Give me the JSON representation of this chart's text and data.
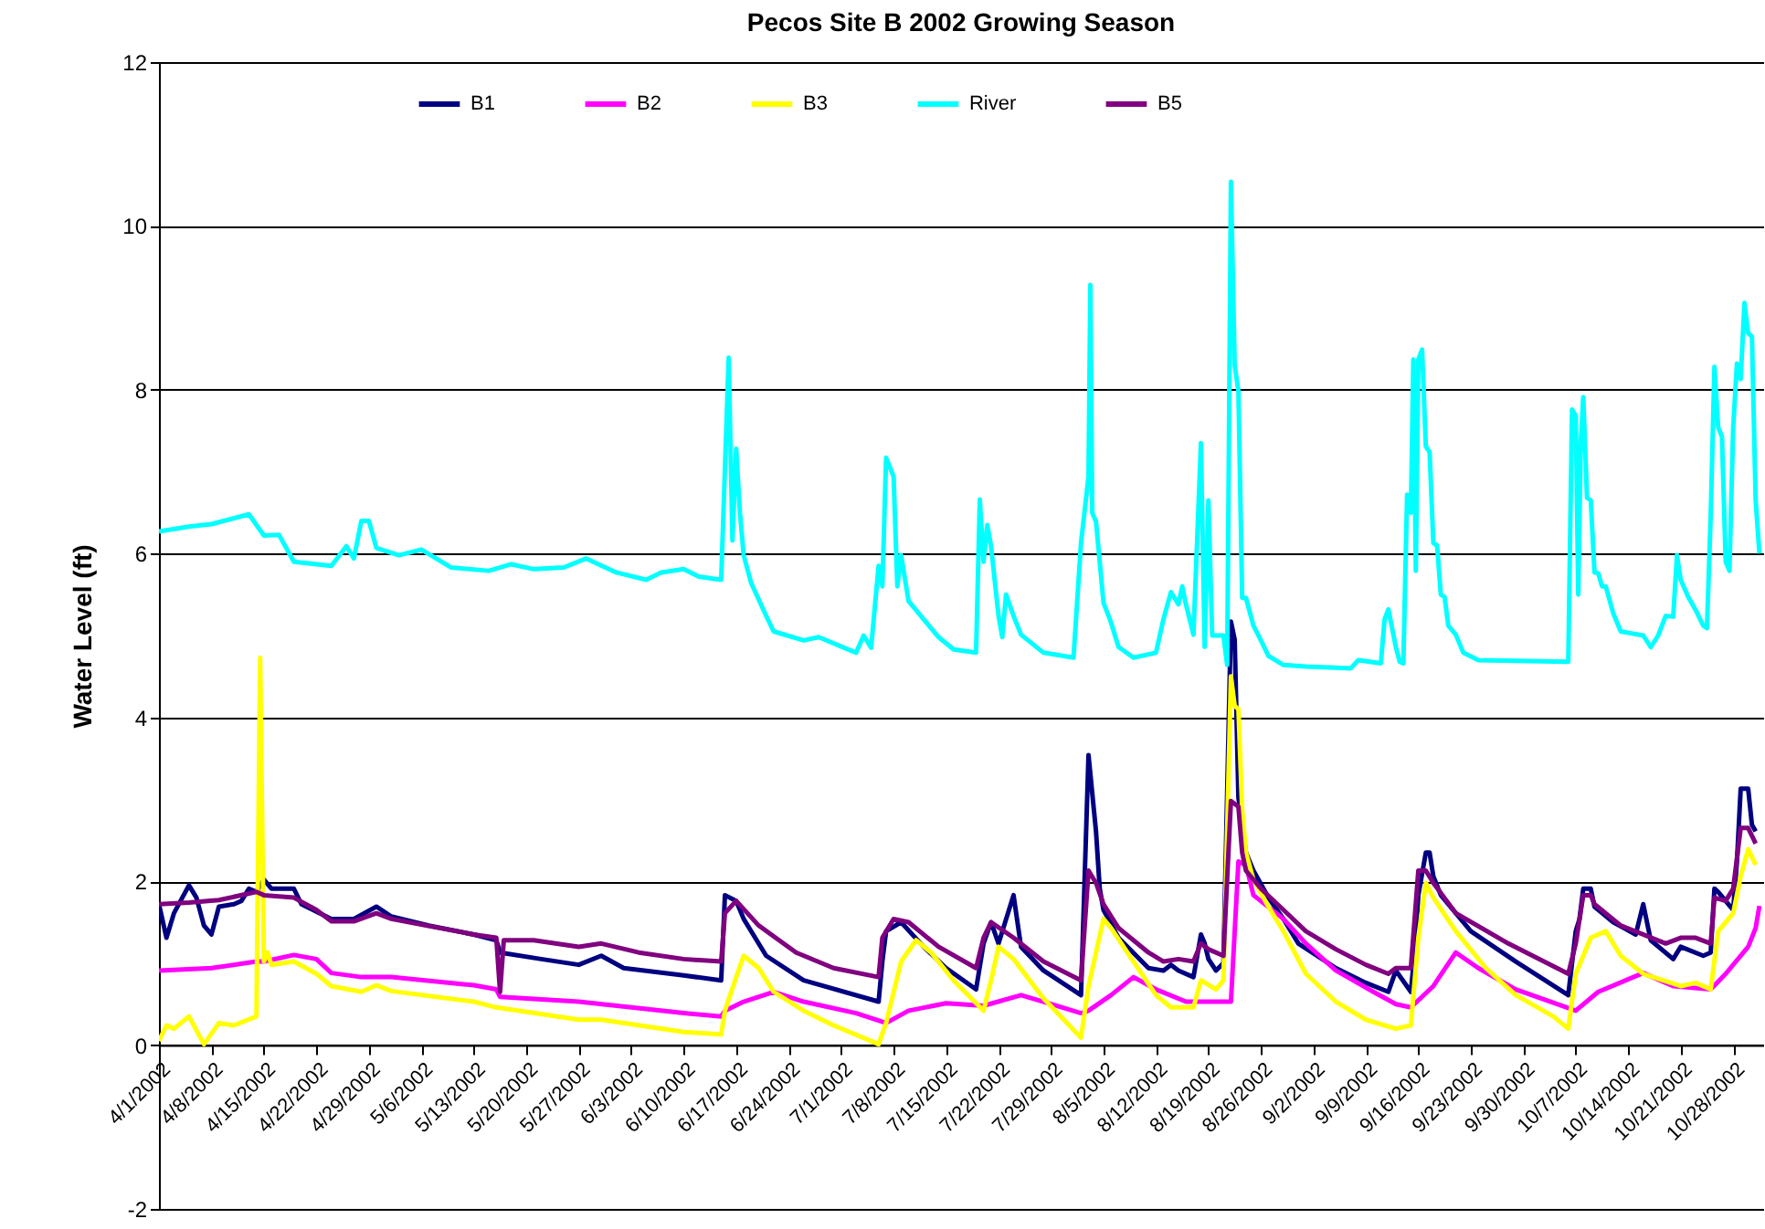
{
  "chart_data": {
    "type": "line",
    "title": "Pecos Site B 2002 Growing Season",
    "ylabel": "Water Level (ft)",
    "xlim": [
      "2002-04-01",
      "2002-11-01"
    ],
    "xticks": [
      {
        "value": "2002-04-01",
        "label": "4/1/2002"
      },
      {
        "value": "2002-04-08",
        "label": "4/8/2002"
      },
      {
        "value": "2002-04-15",
        "label": "4/15/2002"
      },
      {
        "value": "2002-04-22",
        "label": "4/22/2002"
      },
      {
        "value": "2002-04-29",
        "label": "4/29/2002"
      },
      {
        "value": "2002-05-06",
        "label": "5/6/2002"
      },
      {
        "value": "2002-05-13",
        "label": "5/13/2002"
      },
      {
        "value": "2002-05-20",
        "label": "5/20/2002"
      },
      {
        "value": "2002-05-27",
        "label": "5/27/2002"
      },
      {
        "value": "2002-06-03",
        "label": "6/3/2002"
      },
      {
        "value": "2002-06-10",
        "label": "6/10/2002"
      },
      {
        "value": "2002-06-17",
        "label": "6/17/2002"
      },
      {
        "value": "2002-06-24",
        "label": "6/24/2002"
      },
      {
        "value": "2002-07-01",
        "label": "7/1/2002"
      },
      {
        "value": "2002-07-08",
        "label": "7/8/2002"
      },
      {
        "value": "2002-07-15",
        "label": "7/15/2002"
      },
      {
        "value": "2002-07-22",
        "label": "7/22/2002"
      },
      {
        "value": "2002-07-29",
        "label": "7/29/2002"
      },
      {
        "value": "2002-08-05",
        "label": "8/5/2002"
      },
      {
        "value": "2002-08-12",
        "label": "8/12/2002"
      },
      {
        "value": "2002-08-19",
        "label": "8/19/2002"
      },
      {
        "value": "2002-08-26",
        "label": "8/26/2002"
      },
      {
        "value": "2002-09-02",
        "label": "9/2/2002"
      },
      {
        "value": "2002-09-09",
        "label": "9/9/2002"
      },
      {
        "value": "2002-09-16",
        "label": "9/16/2002"
      },
      {
        "value": "2002-09-23",
        "label": "9/23/2002"
      },
      {
        "value": "2002-09-30",
        "label": "9/30/2002"
      },
      {
        "value": "2002-10-07",
        "label": "10/7/2002"
      },
      {
        "value": "2002-10-14",
        "label": "10/14/2002"
      },
      {
        "value": "2002-10-21",
        "label": "10/21/2002"
      },
      {
        "value": "2002-10-28",
        "label": "10/28/2002"
      }
    ],
    "ylim": [
      -2,
      12
    ],
    "yticks": [
      -2,
      0,
      2,
      4,
      6,
      8,
      10,
      12
    ],
    "grid": "y",
    "legend": "top",
    "series": [
      {
        "name": "B1",
        "color": "#000080",
        "x": [
          "2002-04-01",
          "2002-04-02",
          "2002-04-03",
          "2002-04-05",
          "2002-04-06",
          "2002-04-07",
          "2002-04-08",
          "2002-04-09",
          "2002-04-11",
          "2002-04-12",
          "2002-04-13",
          "2002-04-14",
          "2002-04-15",
          "2002-04-16",
          "2002-04-19",
          "2002-04-20",
          "2002-04-24",
          "2002-04-27",
          "2002-04-30",
          "2002-05-02",
          "2002-05-07",
          "2002-05-13",
          "2002-05-16",
          "2002-05-16T12:00",
          "2002-05-22",
          "2002-05-27",
          "2002-05-30",
          "2002-06-02",
          "2002-06-10",
          "2002-06-15",
          "2002-06-15T12:00",
          "2002-06-17",
          "2002-06-18",
          "2002-06-21",
          "2002-06-26",
          "2002-07-06",
          "2002-07-06T12:00",
          "2002-07-07",
          "2002-07-09",
          "2002-07-12",
          "2002-07-15",
          "2002-07-19",
          "2002-07-20",
          "2002-07-21",
          "2002-07-22",
          "2002-07-24",
          "2002-07-25",
          "2002-07-28",
          "2002-08-02",
          "2002-08-03",
          "2002-08-04",
          "2002-08-04T12:00",
          "2002-08-05",
          "2002-08-07",
          "2002-08-11",
          "2002-08-13",
          "2002-08-14",
          "2002-08-15",
          "2002-08-17",
          "2002-08-18",
          "2002-08-18T12:00",
          "2002-08-19",
          "2002-08-20",
          "2002-08-21",
          "2002-08-22",
          "2002-08-22T12:00",
          "2002-08-23",
          "2002-08-24",
          "2002-08-25",
          "2002-08-27",
          "2002-08-29",
          "2002-08-31",
          "2002-09-05",
          "2002-09-09",
          "2002-09-12",
          "2002-09-13",
          "2002-09-15",
          "2002-09-15T12:00",
          "2002-09-16",
          "2002-09-17",
          "2002-09-17T12:00",
          "2002-09-18",
          "2002-09-19",
          "2002-09-23",
          "2002-09-29",
          "2002-10-06",
          "2002-10-07",
          "2002-10-07T12:00",
          "2002-10-08",
          "2002-10-09",
          "2002-10-09T12:00",
          "2002-10-12",
          "2002-10-15",
          "2002-10-16",
          "2002-10-17",
          "2002-10-20",
          "2002-10-21",
          "2002-10-24",
          "2002-10-25",
          "2002-10-25T12:00",
          "2002-10-26",
          "2002-10-28",
          "2002-10-28T12:00",
          "2002-10-29",
          "2002-10-30",
          "2002-10-30T12:00",
          "2002-10-31"
        ],
        "values": [
          1.72,
          1.31,
          1.61,
          1.95,
          1.8,
          1.46,
          1.35,
          1.69,
          1.72,
          1.76,
          1.91,
          1.87,
          2.02,
          1.91,
          1.91,
          1.72,
          1.54,
          1.54,
          1.69,
          1.57,
          1.46,
          1.35,
          1.28,
          1.13,
          1.05,
          0.98,
          1.09,
          0.94,
          0.85,
          0.79,
          1.83,
          1.76,
          1.54,
          1.09,
          0.79,
          0.53,
          1.02,
          1.39,
          1.5,
          1.2,
          0.94,
          0.68,
          1.24,
          1.5,
          1.24,
          1.83,
          1.2,
          0.91,
          0.61,
          3.54,
          2.61,
          1.91,
          1.65,
          1.31,
          0.94,
          0.91,
          0.98,
          0.91,
          0.83,
          1.35,
          1.24,
          1.05,
          0.91,
          1.0,
          5.17,
          4.95,
          3.02,
          2.35,
          2.13,
          1.8,
          1.54,
          1.24,
          0.94,
          0.76,
          0.65,
          0.91,
          0.65,
          1.13,
          1.83,
          2.35,
          2.35,
          2.06,
          1.83,
          1.39,
          1.02,
          0.61,
          1.39,
          1.54,
          1.91,
          1.91,
          1.69,
          1.5,
          1.35,
          1.72,
          1.28,
          1.05,
          1.2,
          1.09,
          1.13,
          1.91,
          1.87,
          1.65,
          2.24,
          3.13,
          3.13,
          2.69,
          2.61
        ]
      },
      {
        "name": "B2",
        "color": "#ff00ff",
        "x": [
          "2002-04-01",
          "2002-04-08",
          "2002-04-14",
          "2002-04-15",
          "2002-04-19",
          "2002-04-22",
          "2002-04-24",
          "2002-04-28",
          "2002-05-02",
          "2002-05-13",
          "2002-05-16",
          "2002-05-16T12:00",
          "2002-05-27",
          "2002-06-10",
          "2002-06-15",
          "2002-06-15T12:00",
          "2002-06-18",
          "2002-06-22",
          "2002-06-26",
          "2002-07-03",
          "2002-07-07",
          "2002-07-10",
          "2002-07-15",
          "2002-07-20",
          "2002-07-25",
          "2002-07-29",
          "2002-08-02",
          "2002-08-03",
          "2002-08-06",
          "2002-08-09",
          "2002-08-12",
          "2002-08-16",
          "2002-08-21",
          "2002-08-22",
          "2002-08-23",
          "2002-08-24",
          "2002-08-25",
          "2002-08-29",
          "2002-09-01",
          "2002-09-05",
          "2002-09-10",
          "2002-09-13",
          "2002-09-15",
          "2002-09-18",
          "2002-09-21",
          "2002-09-24",
          "2002-09-29",
          "2002-10-07",
          "2002-10-10",
          "2002-10-16",
          "2002-10-20",
          "2002-10-25",
          "2002-10-27",
          "2002-10-30",
          "2002-10-31",
          "2002-10-31T12:00"
        ],
        "values": [
          0.91,
          0.94,
          1.02,
          1.02,
          1.1,
          1.05,
          0.88,
          0.83,
          0.83,
          0.73,
          0.68,
          0.59,
          0.53,
          0.39,
          0.35,
          0.42,
          0.53,
          0.65,
          0.53,
          0.39,
          0.27,
          0.42,
          0.51,
          0.48,
          0.61,
          0.5,
          0.39,
          0.42,
          0.61,
          0.83,
          0.68,
          0.53,
          0.53,
          0.53,
          2.24,
          2.2,
          1.83,
          1.54,
          1.24,
          0.91,
          0.65,
          0.5,
          0.46,
          0.72,
          1.13,
          0.94,
          0.68,
          0.42,
          0.65,
          0.88,
          0.72,
          0.68,
          0.87,
          1.2,
          1.43,
          1.7
        ]
      },
      {
        "name": "B3",
        "color": "#ffff00",
        "x": [
          "2002-04-01",
          "2002-04-02",
          "2002-04-03",
          "2002-04-05",
          "2002-04-07",
          "2002-04-09",
          "2002-04-11",
          "2002-04-14",
          "2002-04-14T12:00",
          "2002-04-15",
          "2002-04-15T12:00",
          "2002-04-16",
          "2002-04-19",
          "2002-04-22",
          "2002-04-24",
          "2002-04-28",
          "2002-04-30",
          "2002-05-02",
          "2002-05-13",
          "2002-05-16",
          "2002-05-27",
          "2002-05-30",
          "2002-06-10",
          "2002-06-15",
          "2002-06-15T12:00",
          "2002-06-17",
          "2002-06-18",
          "2002-06-20",
          "2002-06-22",
          "2002-06-26",
          "2002-06-30",
          "2002-07-06",
          "2002-07-07",
          "2002-07-09",
          "2002-07-11",
          "2002-07-13",
          "2002-07-16",
          "2002-07-20",
          "2002-07-21",
          "2002-07-22",
          "2002-07-24",
          "2002-07-28",
          "2002-08-02",
          "2002-08-03",
          "2002-08-05",
          "2002-08-06",
          "2002-08-09",
          "2002-08-12",
          "2002-08-14",
          "2002-08-17",
          "2002-08-18",
          "2002-08-20",
          "2002-08-21",
          "2002-08-22",
          "2002-08-22T12:00",
          "2002-08-23",
          "2002-08-23T12:00",
          "2002-08-24",
          "2002-08-25",
          "2002-08-27",
          "2002-08-29",
          "2002-09-01",
          "2002-09-05",
          "2002-09-09",
          "2002-09-13",
          "2002-09-15",
          "2002-09-16",
          "2002-09-17",
          "2002-09-18",
          "2002-09-21",
          "2002-09-25",
          "2002-09-29",
          "2002-10-04",
          "2002-10-06",
          "2002-10-07",
          "2002-10-09",
          "2002-10-11",
          "2002-10-13",
          "2002-10-16",
          "2002-10-21",
          "2002-10-23",
          "2002-10-25",
          "2002-10-26",
          "2002-10-28",
          "2002-10-29",
          "2002-10-30",
          "2002-10-31"
        ],
        "values": [
          0.05,
          0.24,
          0.2,
          0.35,
          0.01,
          0.27,
          0.24,
          0.35,
          4.73,
          1.02,
          1.13,
          0.98,
          1.02,
          0.87,
          0.72,
          0.65,
          0.73,
          0.66,
          0.53,
          0.46,
          0.31,
          0.31,
          0.16,
          0.13,
          0.42,
          0.83,
          1.09,
          0.94,
          0.65,
          0.42,
          0.24,
          0.01,
          0.27,
          1.02,
          1.28,
          1.13,
          0.79,
          0.42,
          0.79,
          1.2,
          1.05,
          0.57,
          0.09,
          0.72,
          1.54,
          1.43,
          1.02,
          0.61,
          0.46,
          0.46,
          0.79,
          0.68,
          0.79,
          4.5,
          4.14,
          4.1,
          2.87,
          2.35,
          2.02,
          1.69,
          1.39,
          0.87,
          0.53,
          0.31,
          0.2,
          0.24,
          1.31,
          1.98,
          1.8,
          1.39,
          0.94,
          0.61,
          0.35,
          0.2,
          0.87,
          1.31,
          1.39,
          1.09,
          0.87,
          0.72,
          0.76,
          0.68,
          1.39,
          1.61,
          2.06,
          2.39,
          2.2
        ]
      },
      {
        "name": "River",
        "color": "#00ffff",
        "x": [
          "2002-04-01",
          "2002-04-05",
          "2002-04-08",
          "2002-04-13",
          "2002-04-15",
          "2002-04-17",
          "2002-04-19",
          "2002-04-24",
          "2002-04-26",
          "2002-04-27",
          "2002-04-28",
          "2002-04-29",
          "2002-04-30",
          "2002-05-03",
          "2002-05-06",
          "2002-05-10",
          "2002-05-15",
          "2002-05-18",
          "2002-05-21",
          "2002-05-25",
          "2002-05-28",
          "2002-06-01",
          "2002-06-05",
          "2002-06-07",
          "2002-06-10",
          "2002-06-12",
          "2002-06-15",
          "2002-06-16",
          "2002-06-16T12:00",
          "2002-06-17",
          "2002-06-17T12:00",
          "2002-06-18",
          "2002-06-19",
          "2002-06-21",
          "2002-06-22",
          "2002-06-26",
          "2002-06-28",
          "2002-07-03",
          "2002-07-04",
          "2002-07-05",
          "2002-07-06",
          "2002-07-06T12:00",
          "2002-07-07",
          "2002-07-08",
          "2002-07-08T12:00",
          "2002-07-09",
          "2002-07-10",
          "2002-07-12",
          "2002-07-14",
          "2002-07-16",
          "2002-07-19",
          "2002-07-19T12:00",
          "2002-07-20",
          "2002-07-20T12:00",
          "2002-07-21",
          "2002-07-22",
          "2002-07-22T12:00",
          "2002-07-23",
          "2002-07-24",
          "2002-07-25",
          "2002-07-28",
          "2002-08-01",
          "2002-08-02",
          "2002-08-03",
          "2002-08-03T06:00",
          "2002-08-03T12:00",
          "2002-08-04",
          "2002-08-05",
          "2002-08-06",
          "2002-08-07",
          "2002-08-09",
          "2002-08-12",
          "2002-08-13",
          "2002-08-14",
          "2002-08-15",
          "2002-08-15T12:00",
          "2002-08-16",
          "2002-08-17",
          "2002-08-18",
          "2002-08-18T12:00",
          "2002-08-19",
          "2002-08-19T12:00",
          "2002-08-21",
          "2002-08-21T12:00",
          "2002-08-22",
          "2002-08-22T12:00",
          "2002-08-23",
          "2002-08-23T12:00",
          "2002-08-24",
          "2002-08-25",
          "2002-08-26",
          "2002-08-27",
          "2002-08-29",
          "2002-09-01",
          "2002-09-07",
          "2002-09-08",
          "2002-09-11",
          "2002-09-11T12:00",
          "2002-09-12",
          "2002-09-13",
          "2002-09-13T12:00",
          "2002-09-14",
          "2002-09-14T12:00",
          "2002-09-15",
          "2002-09-15T08:00",
          "2002-09-15T16:00",
          "2002-09-16",
          "2002-09-16T12:00",
          "2002-09-17",
          "2002-09-17T12:00",
          "2002-09-18",
          "2002-09-18T12:00",
          "2002-09-19",
          "2002-09-19T12:00",
          "2002-09-20",
          "2002-09-21",
          "2002-09-22",
          "2002-09-24",
          "2002-10-06",
          "2002-10-06T12:00",
          "2002-10-07",
          "2002-10-07T08:00",
          "2002-10-07T16:00",
          "2002-10-08",
          "2002-10-08T12:00",
          "2002-10-09",
          "2002-10-09T12:00",
          "2002-10-10",
          "2002-10-10T12:00",
          "2002-10-11",
          "2002-10-12",
          "2002-10-13",
          "2002-10-16",
          "2002-10-17",
          "2002-10-18",
          "2002-10-19",
          "2002-10-20",
          "2002-10-20T12:00",
          "2002-10-21",
          "2002-10-22",
          "2002-10-23",
          "2002-10-24",
          "2002-10-24T12:00",
          "2002-10-25",
          "2002-10-25T12:00",
          "2002-10-26",
          "2002-10-26T12:00",
          "2002-10-27",
          "2002-10-27T12:00",
          "2002-10-28",
          "2002-10-28T12:00",
          "2002-10-29",
          "2002-10-29T12:00",
          "2002-10-30",
          "2002-10-30T12:00",
          "2002-10-31",
          "2002-10-31T12:00"
        ],
        "values": [
          6.27,
          6.33,
          6.36,
          6.48,
          6.22,
          6.23,
          5.9,
          5.85,
          6.09,
          5.94,
          6.4,
          6.4,
          6.07,
          5.98,
          6.05,
          5.83,
          5.79,
          5.87,
          5.81,
          5.83,
          5.94,
          5.77,
          5.68,
          5.77,
          5.81,
          5.72,
          5.68,
          8.39,
          6.16,
          7.28,
          6.5,
          5.98,
          5.64,
          5.24,
          5.05,
          4.94,
          4.98,
          4.79,
          5.0,
          4.85,
          5.85,
          5.6,
          7.17,
          6.94,
          5.6,
          5.98,
          5.42,
          5.2,
          4.98,
          4.83,
          4.79,
          6.66,
          5.9,
          6.35,
          6.09,
          5.24,
          4.98,
          5.5,
          5.24,
          5.01,
          4.79,
          4.73,
          6.13,
          6.94,
          9.28,
          6.5,
          6.39,
          5.4,
          5.16,
          4.86,
          4.73,
          4.79,
          5.2,
          5.53,
          5.38,
          5.6,
          5.38,
          5.01,
          7.35,
          4.86,
          6.65,
          5.0,
          5.0,
          4.64,
          10.54,
          8.3,
          7.98,
          5.46,
          5.46,
          5.12,
          4.94,
          4.75,
          4.64,
          4.62,
          4.6,
          4.7,
          4.66,
          5.2,
          5.32,
          4.86,
          4.68,
          4.66,
          6.72,
          6.5,
          8.37,
          5.79,
          8.37,
          8.49,
          7.31,
          7.24,
          6.13,
          6.1,
          5.5,
          5.47,
          5.12,
          5.01,
          4.79,
          4.7,
          4.68,
          7.76,
          7.68,
          5.5,
          7.35,
          7.91,
          6.68,
          6.65,
          5.77,
          5.76,
          5.6,
          5.6,
          5.27,
          5.05,
          5.0,
          4.86,
          5.0,
          5.24,
          5.23,
          5.98,
          5.68,
          5.47,
          5.31,
          5.12,
          5.09,
          6.46,
          8.28,
          7.54,
          7.43,
          5.9,
          5.79,
          7.54,
          8.32,
          8.13,
          9.06,
          8.69,
          8.65,
          6.65,
          6.0
        ]
      },
      {
        "name": "B5",
        "color": "#800080",
        "x": [
          "2002-04-01",
          "2002-04-05",
          "2002-04-09",
          "2002-04-14",
          "2002-04-15",
          "2002-04-19",
          "2002-04-22",
          "2002-04-24",
          "2002-04-27",
          "2002-04-30",
          "2002-05-02",
          "2002-05-13",
          "2002-05-16",
          "2002-05-16T12:00",
          "2002-05-17",
          "2002-05-21",
          "2002-05-27",
          "2002-05-30",
          "2002-06-04",
          "2002-06-10",
          "2002-06-15",
          "2002-06-15T12:00",
          "2002-06-17",
          "2002-06-20",
          "2002-06-25",
          "2002-06-30",
          "2002-07-06",
          "2002-07-06T12:00",
          "2002-07-08",
          "2002-07-10",
          "2002-07-14",
          "2002-07-19",
          "2002-07-20",
          "2002-07-21",
          "2002-07-24",
          "2002-07-28",
          "2002-08-02",
          "2002-08-03",
          "2002-08-04",
          "2002-08-05",
          "2002-08-07",
          "2002-08-11",
          "2002-08-13",
          "2002-08-15",
          "2002-08-17",
          "2002-08-18",
          "2002-08-19",
          "2002-08-21",
          "2002-08-22",
          "2002-08-23",
          "2002-08-23T12:00",
          "2002-08-24",
          "2002-08-26",
          "2002-08-29",
          "2002-09-01",
          "2002-09-05",
          "2002-09-09",
          "2002-09-12",
          "2002-09-13",
          "2002-09-15",
          "2002-09-16",
          "2002-09-17",
          "2002-09-18",
          "2002-09-21",
          "2002-09-28",
          "2002-10-06",
          "2002-10-07",
          "2002-10-08",
          "2002-10-09",
          "2002-10-09T12:00",
          "2002-10-13",
          "2002-10-19",
          "2002-10-21",
          "2002-10-23",
          "2002-10-25",
          "2002-10-25T12:00",
          "2002-10-27",
          "2002-10-28",
          "2002-10-29",
          "2002-10-30",
          "2002-10-31"
        ],
        "values": [
          1.72,
          1.74,
          1.77,
          1.87,
          1.83,
          1.8,
          1.65,
          1.51,
          1.51,
          1.61,
          1.54,
          1.35,
          1.31,
          0.65,
          1.28,
          1.28,
          1.2,
          1.24,
          1.13,
          1.05,
          1.02,
          1.61,
          1.76,
          1.46,
          1.13,
          0.94,
          0.83,
          1.31,
          1.54,
          1.5,
          1.2,
          0.94,
          1.31,
          1.5,
          1.31,
          1.02,
          0.79,
          2.13,
          1.98,
          1.72,
          1.43,
          1.13,
          1.02,
          1.05,
          1.02,
          1.24,
          1.17,
          1.09,
          2.98,
          2.91,
          2.35,
          2.13,
          1.91,
          1.65,
          1.39,
          1.17,
          0.98,
          0.87,
          0.94,
          0.94,
          2.13,
          2.13,
          1.98,
          1.61,
          1.24,
          0.87,
          1.24,
          1.83,
          1.83,
          1.72,
          1.46,
          1.24,
          1.31,
          1.31,
          1.24,
          1.8,
          1.76,
          1.91,
          2.65,
          2.65,
          2.46
        ]
      }
    ]
  }
}
